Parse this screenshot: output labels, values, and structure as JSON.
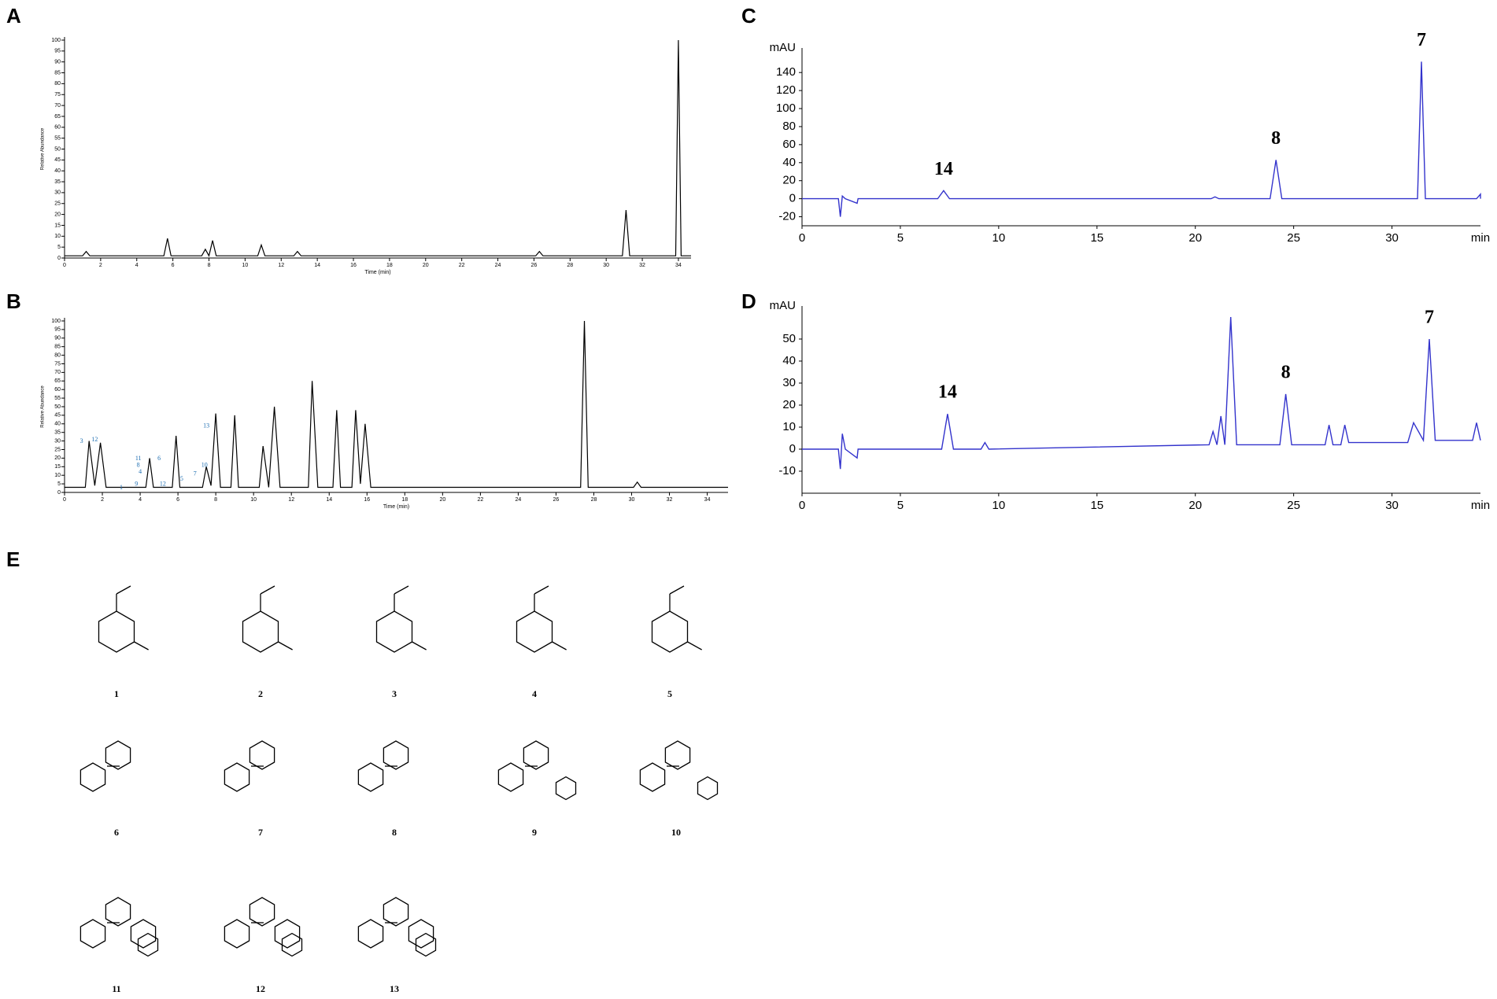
{
  "chart_data": [
    {
      "type": "line",
      "panel": "A",
      "y_label": "Relative Abundance",
      "x_label": "Time (min)",
      "x": [
        0,
        1.0,
        1.2,
        1.4,
        5.5,
        5.7,
        5.9,
        7.6,
        7.8,
        8.0,
        8.2,
        8.4,
        10.7,
        10.9,
        11.1,
        12.7,
        12.9,
        13.1,
        26.1,
        26.3,
        26.5,
        30.9,
        31.1,
        31.3,
        33.85,
        34.0,
        34.15,
        34.7
      ],
      "series": [
        {
          "color": "#000000",
          "values": [
            1,
            1,
            3,
            1,
            1,
            9,
            1,
            1,
            4,
            1,
            8,
            1,
            1,
            6,
            1,
            1,
            3,
            1,
            1,
            3,
            1,
            1,
            22,
            1,
            1,
            100,
            1,
            1
          ]
        }
      ],
      "xlim": [
        0,
        34.7
      ],
      "ylim": [
        0,
        100
      ],
      "xticks": [
        0,
        2,
        4,
        6,
        8,
        10,
        12,
        14,
        16,
        18,
        20,
        22,
        24,
        26,
        28,
        30,
        32,
        34
      ],
      "yticks": [
        0,
        5,
        10,
        15,
        20,
        25,
        30,
        35,
        40,
        45,
        50,
        55,
        60,
        65,
        70,
        75,
        80,
        85,
        90,
        95,
        100
      ]
    },
    {
      "type": "line",
      "panel": "B",
      "y_label": "Relative Abundance",
      "x_label": "Time (min)",
      "x": [
        0,
        1.1,
        1.3,
        1.6,
        1.9,
        2.2,
        4.3,
        4.5,
        4.7,
        5.7,
        5.9,
        6.1,
        7.3,
        7.5,
        7.75,
        8.0,
        8.25,
        8.8,
        9.0,
        9.2,
        10.3,
        10.5,
        10.8,
        11.1,
        11.4,
        12.9,
        13.1,
        13.4,
        14.2,
        14.4,
        14.6,
        15.2,
        15.4,
        15.65,
        15.9,
        16.2,
        27.3,
        27.5,
        27.7,
        30.1,
        30.3,
        30.5,
        35.1
      ],
      "series": [
        {
          "color": "#000000",
          "values": [
            3,
            3,
            30,
            4,
            29,
            3,
            3,
            20,
            3,
            3,
            33,
            3,
            3,
            15,
            4,
            46,
            3,
            3,
            45,
            3,
            3,
            27,
            3,
            50,
            3,
            3,
            65,
            3,
            3,
            48,
            3,
            3,
            48,
            5,
            40,
            3,
            3,
            100,
            3,
            3,
            6,
            3,
            3
          ]
        }
      ],
      "annotations": [
        {
          "text": "3",
          "x": 0.9,
          "y": 27
        },
        {
          "text": "12",
          "x": 1.6,
          "y": 28
        },
        {
          "text": "11",
          "x": 3.9,
          "y": 17
        },
        {
          "text": "8",
          "x": 3.9,
          "y": 13
        },
        {
          "text": "4",
          "x": 4.0,
          "y": 9
        },
        {
          "text": "6",
          "x": 5.0,
          "y": 17
        },
        {
          "text": "1",
          "x": 3.0,
          "y": 0
        },
        {
          "text": "9",
          "x": 3.8,
          "y": 2
        },
        {
          "text": "5",
          "x": 6.2,
          "y": 5
        },
        {
          "text": "7",
          "x": 6.9,
          "y": 8
        },
        {
          "text": "10",
          "x": 7.4,
          "y": 13
        },
        {
          "text": "12",
          "x": 5.2,
          "y": 2
        },
        {
          "text": "13",
          "x": 7.5,
          "y": 36
        }
      ],
      "xlim": [
        0,
        35.1
      ],
      "ylim": [
        0,
        100
      ],
      "xticks": [
        0,
        2,
        4,
        6,
        8,
        10,
        12,
        14,
        16,
        18,
        20,
        22,
        24,
        26,
        28,
        30,
        32,
        34
      ],
      "yticks": [
        0,
        5,
        10,
        15,
        20,
        25,
        30,
        35,
        40,
        45,
        50,
        55,
        60,
        65,
        70,
        75,
        80,
        85,
        90,
        95,
        100
      ]
    },
    {
      "type": "line",
      "panel": "C",
      "y_label": "mAU",
      "x_label": "min",
      "x": [
        0,
        1.85,
        1.95,
        2.05,
        2.2,
        2.8,
        2.85,
        6.9,
        7.2,
        7.5,
        20.8,
        21.0,
        21.2,
        23.8,
        24.1,
        24.4,
        31.3,
        31.5,
        31.7,
        34.3,
        34.5,
        34.5
      ],
      "series": [
        {
          "color": "#3333cc",
          "values": [
            0,
            0,
            -20,
            3,
            0,
            -5,
            0,
            0,
            9,
            0,
            0,
            2,
            0,
            0,
            43,
            0,
            0,
            152,
            0,
            0,
            5,
            0
          ]
        }
      ],
      "annotations": [
        {
          "text": "14",
          "x": 7.2,
          "y": 9
        },
        {
          "text": "8",
          "x": 24.1,
          "y": 43
        },
        {
          "text": "7",
          "x": 31.5,
          "y": 152
        }
      ],
      "xlim": [
        0,
        34.5
      ],
      "ylim": [
        -30,
        155
      ],
      "xticks": [
        0,
        5,
        10,
        15,
        20,
        25,
        30
      ],
      "yticks": [
        -20,
        0,
        20,
        40,
        60,
        80,
        100,
        120,
        140
      ]
    },
    {
      "type": "line",
      "panel": "D",
      "y_label": "mAU",
      "x_label": "min",
      "x": [
        0,
        1.85,
        1.95,
        2.05,
        2.2,
        2.8,
        2.85,
        7.1,
        7.4,
        7.7,
        9.1,
        9.3,
        9.5,
        20.7,
        20.9,
        21.1,
        21.3,
        21.5,
        21.8,
        22.1,
        24.3,
        24.6,
        24.9,
        26.6,
        26.8,
        27.0,
        27.4,
        27.6,
        27.8,
        30.8,
        31.1,
        31.6,
        31.9,
        32.2,
        34.1,
        34.3,
        34.5
      ],
      "series": [
        {
          "color": "#3333cc",
          "values": [
            0,
            0,
            -9,
            7,
            0,
            -4,
            0,
            0,
            16,
            0,
            0,
            3,
            0,
            2,
            8,
            2,
            15,
            2,
            60,
            2,
            2,
            25,
            2,
            2,
            11,
            2,
            2,
            11,
            3,
            3,
            12,
            4,
            50,
            4,
            4,
            12,
            4
          ]
        }
      ],
      "annotations": [
        {
          "text": "14",
          "x": 7.4,
          "y": 16
        },
        {
          "text": "8",
          "x": 24.6,
          "y": 25
        },
        {
          "text": "7",
          "x": 31.9,
          "y": 50
        }
      ],
      "xlim": [
        0,
        34.5
      ],
      "ylim": [
        -20,
        60
      ],
      "xticks": [
        0,
        5,
        10,
        15,
        20,
        25,
        30
      ],
      "yticks": [
        -10,
        0,
        10,
        20,
        30,
        40,
        50
      ]
    }
  ],
  "compounds": {
    "panel": "E",
    "labels": [
      "1",
      "2",
      "3",
      "4",
      "5",
      "6",
      "7",
      "8",
      "9",
      "10",
      "11",
      "12",
      "13"
    ]
  }
}
